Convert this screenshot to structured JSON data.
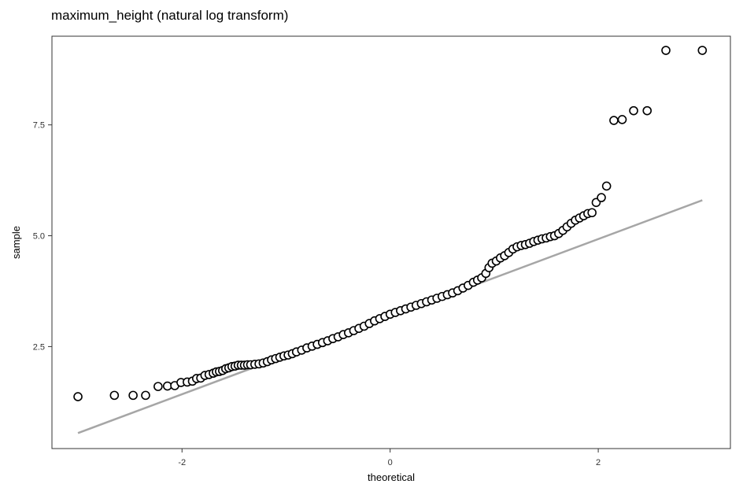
{
  "chart_data": {
    "type": "scatter",
    "title": "maximum_height (natural log transform)",
    "xlabel": "theoretical",
    "ylabel": "sample",
    "xlim": [
      -3.25,
      3.27
    ],
    "ylim": [
      0.2,
      9.5
    ],
    "x_ticks": [
      -2,
      0,
      2
    ],
    "x_tick_labels": [
      "-2",
      "0",
      "2"
    ],
    "y_ticks": [
      2.5,
      5.0,
      7.5
    ],
    "y_tick_labels": [
      "2.5",
      "5.0",
      "7.5"
    ],
    "grid": false,
    "legend": "none",
    "colors": {
      "points": "#000000",
      "reference_line": "#a6a6a6",
      "panel_border": "#333333"
    },
    "reference_line": {
      "x": [
        -3.0,
        3.0
      ],
      "y": [
        0.55,
        5.8
      ]
    },
    "series": [
      {
        "x": [
          -3.0,
          -2.65,
          -2.47,
          -2.35,
          -2.23,
          -2.14,
          -2.07,
          -2.01,
          -1.95,
          -1.9,
          -1.86,
          -1.82,
          -1.78,
          -1.74,
          -1.7,
          -1.67,
          -1.64,
          -1.61,
          -1.58,
          -1.55,
          -1.52,
          -1.49,
          -1.46,
          -1.43,
          -1.4,
          -1.37,
          -1.34,
          -1.3,
          -1.26,
          -1.22,
          -1.18,
          -1.14,
          -1.1,
          -1.06,
          -1.02,
          -0.98,
          -0.94,
          -0.9,
          -0.85,
          -0.8,
          -0.75,
          -0.7,
          -0.65,
          -0.6,
          -0.55,
          -0.5,
          -0.45,
          -0.4,
          -0.35,
          -0.3,
          -0.25,
          -0.2,
          -0.15,
          -0.1,
          -0.05,
          0.0,
          0.05,
          0.1,
          0.15,
          0.2,
          0.25,
          0.3,
          0.35,
          0.4,
          0.45,
          0.5,
          0.55,
          0.6,
          0.65,
          0.7,
          0.75,
          0.8,
          0.84,
          0.88,
          0.92,
          0.95,
          0.98,
          1.02,
          1.06,
          1.1,
          1.14,
          1.18,
          1.22,
          1.26,
          1.3,
          1.34,
          1.38,
          1.42,
          1.46,
          1.5,
          1.54,
          1.58,
          1.62,
          1.66,
          1.7,
          1.74,
          1.78,
          1.82,
          1.86,
          1.9,
          1.94,
          1.98,
          2.03,
          2.08,
          2.15,
          2.23,
          2.34,
          2.47,
          2.65,
          3.0
        ],
        "y": [
          1.37,
          1.4,
          1.4,
          1.4,
          1.6,
          1.61,
          1.62,
          1.69,
          1.7,
          1.72,
          1.78,
          1.79,
          1.85,
          1.87,
          1.9,
          1.93,
          1.94,
          1.96,
          2.0,
          2.02,
          2.05,
          2.06,
          2.08,
          2.08,
          2.08,
          2.09,
          2.09,
          2.1,
          2.11,
          2.13,
          2.16,
          2.2,
          2.23,
          2.26,
          2.29,
          2.31,
          2.34,
          2.38,
          2.42,
          2.47,
          2.51,
          2.55,
          2.59,
          2.63,
          2.68,
          2.72,
          2.77,
          2.81,
          2.86,
          2.91,
          2.96,
          3.02,
          3.08,
          3.13,
          3.18,
          3.23,
          3.27,
          3.31,
          3.35,
          3.39,
          3.43,
          3.47,
          3.51,
          3.55,
          3.59,
          3.63,
          3.67,
          3.71,
          3.76,
          3.82,
          3.88,
          3.95,
          4.0,
          4.05,
          4.15,
          4.28,
          4.38,
          4.43,
          4.5,
          4.55,
          4.62,
          4.7,
          4.75,
          4.78,
          4.8,
          4.83,
          4.87,
          4.9,
          4.93,
          4.95,
          4.98,
          5.0,
          5.05,
          5.12,
          5.2,
          5.28,
          5.35,
          5.4,
          5.45,
          5.5,
          5.52,
          5.75,
          5.86,
          6.12,
          7.6,
          7.62,
          7.82,
          7.82,
          9.18,
          9.18
        ]
      }
    ]
  }
}
